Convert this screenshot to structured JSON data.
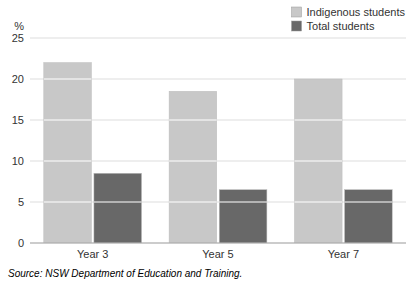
{
  "chart_data": {
    "type": "bar",
    "categories": [
      "Year 3",
      "Year 5",
      "Year 7"
    ],
    "series": [
      {
        "name": "Indigenous students",
        "color": "#c8c8c8",
        "values": [
          22.0,
          18.5,
          20.0
        ]
      },
      {
        "name": "Total students",
        "color": "#686868",
        "values": [
          8.5,
          6.5,
          6.5
        ]
      }
    ],
    "ylabel": "%",
    "ylim": [
      0,
      25
    ],
    "yticks": [
      0,
      5,
      10,
      15,
      20,
      25
    ],
    "grid": true,
    "legend": "upper right",
    "annotations": [
      "Source: NSW Department of Education and Training."
    ]
  }
}
